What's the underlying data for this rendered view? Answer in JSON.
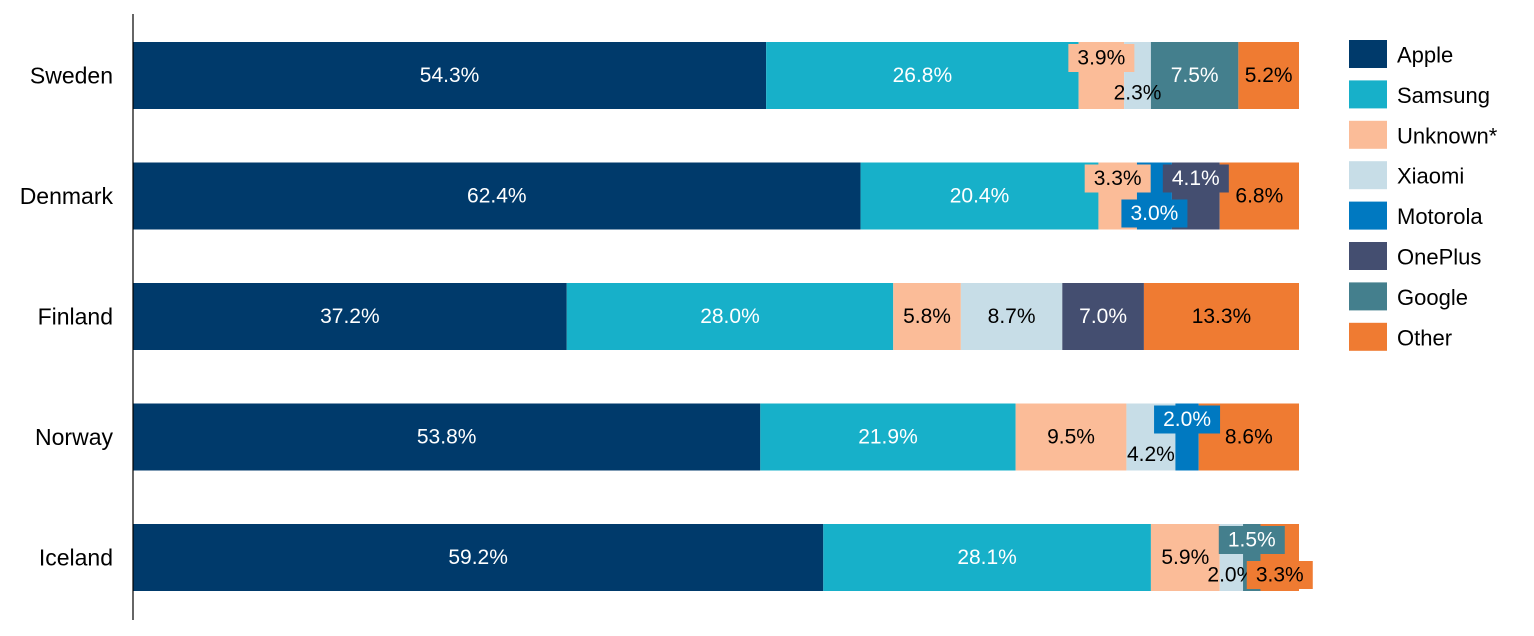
{
  "chart_data": {
    "type": "bar",
    "orientation": "horizontal",
    "stacked": true,
    "percent_stacked": true,
    "categories": [
      "Sweden",
      "Denmark",
      "Finland",
      "Norway",
      "Iceland"
    ],
    "series": [
      {
        "name": "Apple",
        "color": "#003a6b",
        "values": [
          54.3,
          62.4,
          37.2,
          53.8,
          59.2
        ],
        "labels": [
          "54.3%",
          "62.4%",
          "37.2%",
          "53.8%",
          "59.2%"
        ]
      },
      {
        "name": "Samsung",
        "color": "#17b0c9",
        "values": [
          26.8,
          20.4,
          28.0,
          21.9,
          28.1
        ],
        "labels": [
          "26.8%",
          "20.4%",
          "28.0%",
          "21.9%",
          "28.1%"
        ]
      },
      {
        "name": "Unknown*",
        "color": "#fbbc98",
        "values": [
          3.9,
          3.3,
          5.8,
          9.5,
          5.9
        ],
        "labels": [
          "3.9%",
          "3.3%",
          "5.8%",
          "9.5%",
          "5.9%"
        ]
      },
      {
        "name": "Xiaomi",
        "color": "#c7dde7",
        "values": [
          2.3,
          0,
          8.7,
          4.2,
          2.0
        ],
        "labels": [
          "2.3%",
          "",
          "8.7%",
          "4.2%",
          "2.0%"
        ]
      },
      {
        "name": "Motorola",
        "color": "#0079c1",
        "values": [
          0,
          3.0,
          0,
          2.0,
          0
        ],
        "labels": [
          "",
          "3.0%",
          "",
          "2.0%",
          ""
        ]
      },
      {
        "name": "OnePlus",
        "color": "#444e70",
        "values": [
          0,
          4.1,
          7.0,
          0,
          0
        ],
        "labels": [
          "",
          "4.1%",
          "7.0%",
          "",
          ""
        ]
      },
      {
        "name": "Google",
        "color": "#447f8d",
        "values": [
          7.5,
          0,
          0,
          0,
          1.5
        ],
        "labels": [
          "7.5%",
          "",
          "",
          "",
          "1.5%"
        ]
      },
      {
        "name": "Other",
        "color": "#ef7b32",
        "values": [
          5.2,
          6.8,
          13.3,
          8.6,
          3.3
        ],
        "labels": [
          "5.2%",
          "6.8%",
          "13.3%",
          "8.6%",
          "3.3%"
        ]
      }
    ],
    "legend_position": "right",
    "grid": false
  }
}
